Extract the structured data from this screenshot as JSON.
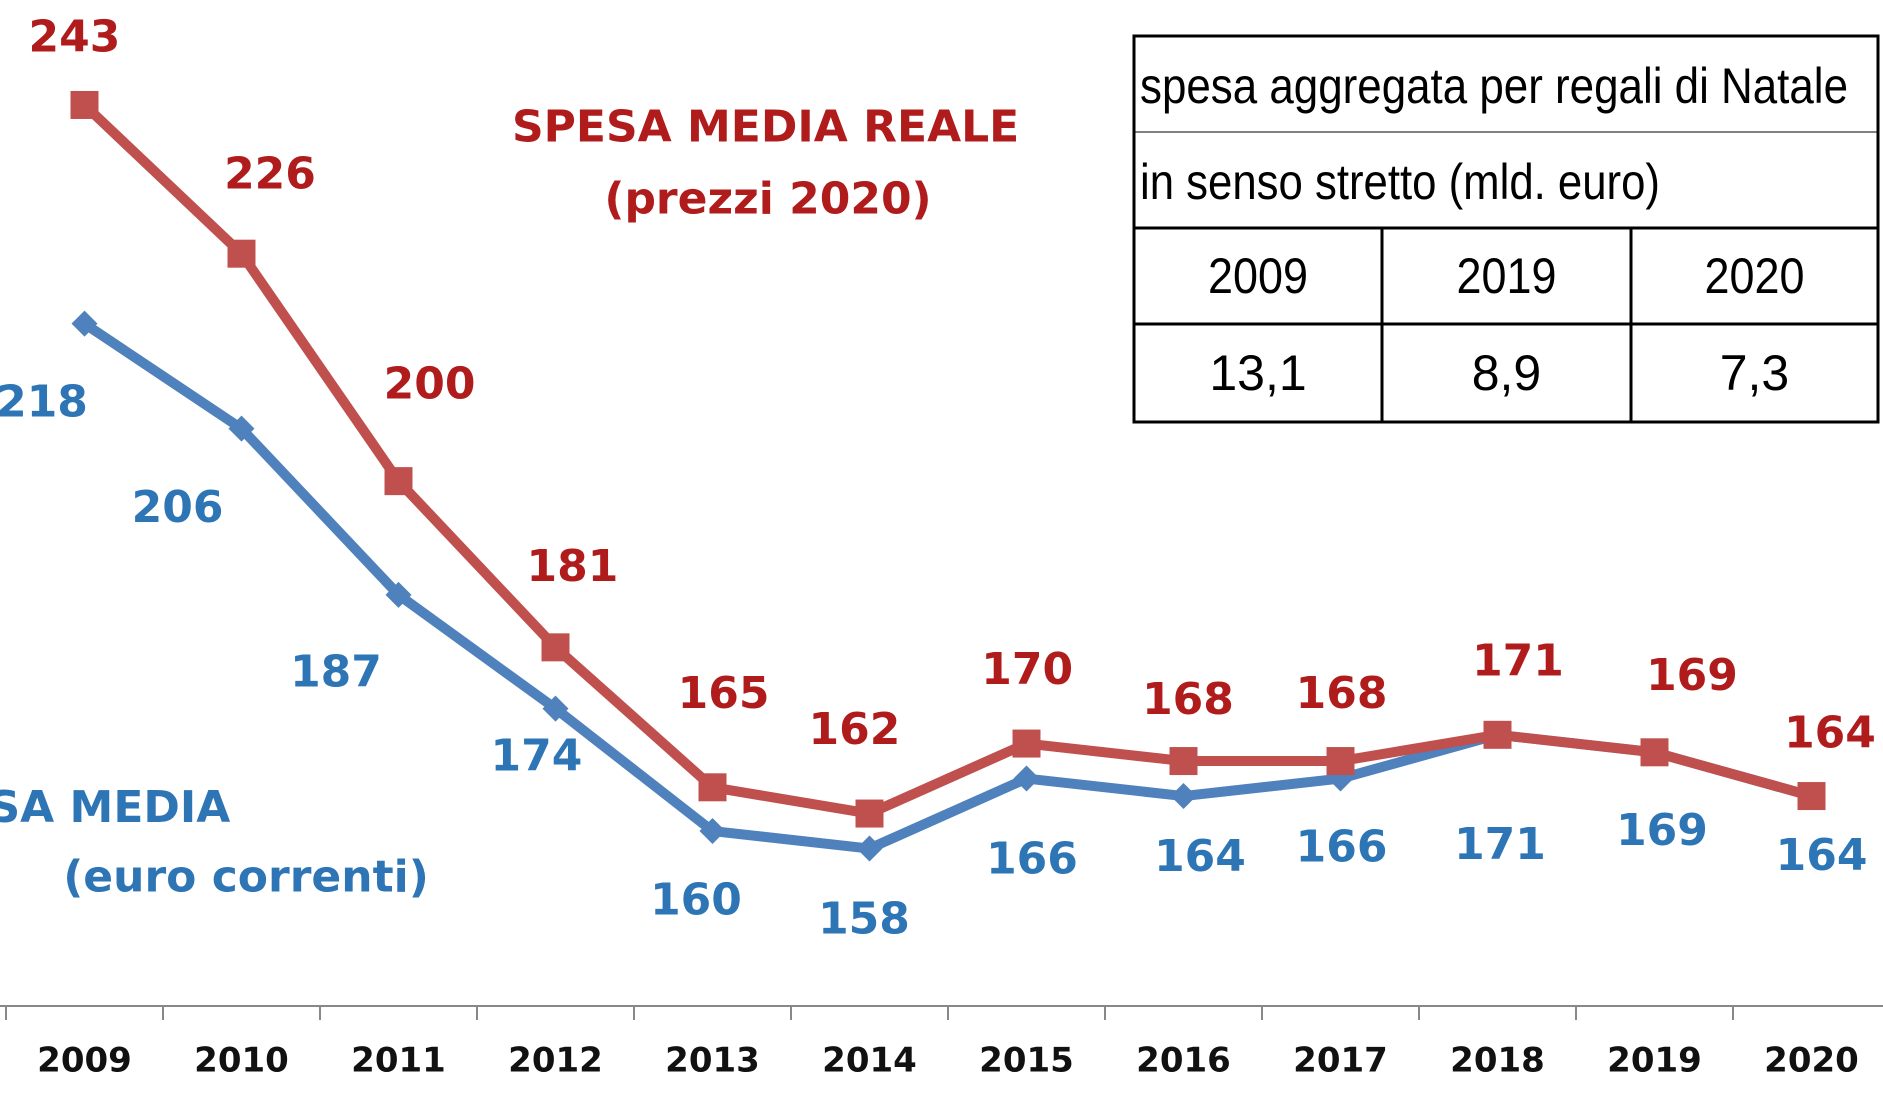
{
  "chart_data": {
    "type": "line",
    "categories": [
      "2009",
      "2010",
      "2011",
      "2012",
      "2013",
      "2014",
      "2015",
      "2016",
      "2017",
      "2018",
      "2019",
      "2020"
    ],
    "series": [
      {
        "name": "SPESA MEDIA",
        "note": "(euro correnti)",
        "color": "#4f81bd",
        "label_color": "#2e75b6",
        "marker": "diamond",
        "values": [
          218,
          206,
          187,
          174,
          160,
          158,
          166,
          164,
          166,
          171,
          169,
          164
        ]
      },
      {
        "name": "SPESA MEDIA REALE",
        "note": "(prezzi 2020)",
        "color": "#c0504d",
        "label_color": "#b01c1c",
        "marker": "square",
        "values": [
          243,
          226,
          200,
          181,
          165,
          162,
          170,
          168,
          168,
          171,
          169,
          164
        ]
      }
    ],
    "ylim": [
      140,
      255
    ]
  },
  "table": {
    "title": [
      "spesa aggregata per regali di Natale",
      "in senso stretto (mld. euro)"
    ],
    "header": [
      "2009",
      "2019",
      "2020"
    ],
    "rows": [
      [
        "13,1",
        "8,9",
        "7,3"
      ]
    ]
  }
}
